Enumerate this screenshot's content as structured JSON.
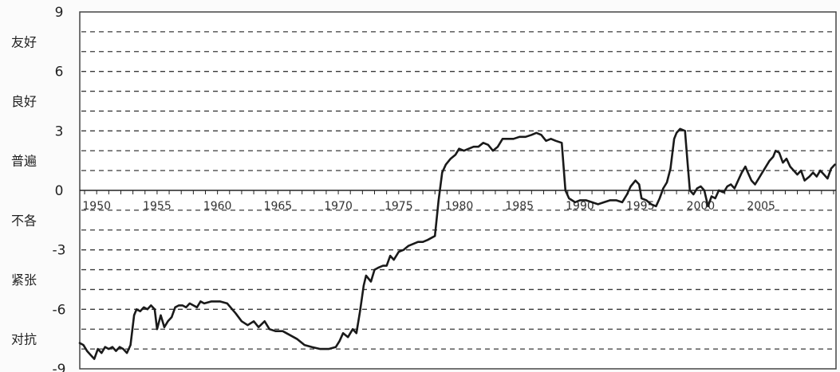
{
  "chart_data": {
    "type": "line",
    "title": "",
    "xlabel": "",
    "ylabel": "",
    "xlim": [
      1948.6,
      2011.2
    ],
    "ylim": [
      -9,
      9
    ],
    "y_ticks": [
      "9",
      "6",
      "3",
      "0",
      "-3",
      "-6",
      "-9"
    ],
    "x_tick_labels": [
      "1950",
      "1955",
      "1960",
      "1965",
      "1970",
      "1975",
      "1980",
      "1985",
      "1990",
      "1995",
      "2000",
      "2005"
    ],
    "category_labels": [
      {
        "text": "友好",
        "y": 7.5
      },
      {
        "text": "良好",
        "y": 4.5
      },
      {
        "text": "普遍",
        "y": 1.5
      },
      {
        "text": "不各",
        "y": -1.5
      },
      {
        "text": "紧张",
        "y": -4.5
      },
      {
        "text": "对抗",
        "y": -7.5
      }
    ],
    "grid": "dashed horizontal lines every 1 unit",
    "series": [
      {
        "color": "#1a1a1a",
        "points": [
          [
            1948.6,
            -7.7
          ],
          [
            1948.9,
            -7.8
          ],
          [
            1949.2,
            -8.1
          ],
          [
            1949.5,
            -8.3
          ],
          [
            1949.8,
            -8.5
          ],
          [
            1950.1,
            -8.0
          ],
          [
            1950.4,
            -8.2
          ],
          [
            1950.7,
            -7.9
          ],
          [
            1951.0,
            -8.0
          ],
          [
            1951.3,
            -7.9
          ],
          [
            1951.6,
            -8.1
          ],
          [
            1951.9,
            -7.9
          ],
          [
            1952.2,
            -8.0
          ],
          [
            1952.5,
            -8.2
          ],
          [
            1952.8,
            -7.8
          ],
          [
            1953.1,
            -6.3
          ],
          [
            1953.3,
            -6.0
          ],
          [
            1953.6,
            -6.1
          ],
          [
            1953.9,
            -5.9
          ],
          [
            1954.2,
            -6.0
          ],
          [
            1954.5,
            -5.8
          ],
          [
            1954.8,
            -6.0
          ],
          [
            1955.0,
            -7.0
          ],
          [
            1955.3,
            -6.3
          ],
          [
            1955.6,
            -6.9
          ],
          [
            1955.9,
            -6.6
          ],
          [
            1956.2,
            -6.4
          ],
          [
            1956.5,
            -5.9
          ],
          [
            1956.8,
            -5.8
          ],
          [
            1957.1,
            -5.8
          ],
          [
            1957.4,
            -5.9
          ],
          [
            1957.7,
            -5.7
          ],
          [
            1958.0,
            -5.8
          ],
          [
            1958.3,
            -5.9
          ],
          [
            1958.6,
            -5.6
          ],
          [
            1958.9,
            -5.7
          ],
          [
            1959.5,
            -5.6
          ],
          [
            1960.2,
            -5.6
          ],
          [
            1960.8,
            -5.7
          ],
          [
            1961.5,
            -6.2
          ],
          [
            1962.0,
            -6.6
          ],
          [
            1962.5,
            -6.8
          ],
          [
            1963.0,
            -6.6
          ],
          [
            1963.4,
            -6.9
          ],
          [
            1963.9,
            -6.6
          ],
          [
            1964.3,
            -7.0
          ],
          [
            1964.8,
            -7.1
          ],
          [
            1965.4,
            -7.1
          ],
          [
            1966.0,
            -7.3
          ],
          [
            1966.6,
            -7.5
          ],
          [
            1967.2,
            -7.8
          ],
          [
            1967.8,
            -7.9
          ],
          [
            1968.5,
            -8.0
          ],
          [
            1969.2,
            -8.0
          ],
          [
            1969.8,
            -7.9
          ],
          [
            1970.1,
            -7.6
          ],
          [
            1970.4,
            -7.2
          ],
          [
            1970.8,
            -7.4
          ],
          [
            1971.2,
            -7.0
          ],
          [
            1971.5,
            -7.2
          ],
          [
            1971.8,
            -6.1
          ],
          [
            1972.1,
            -4.8
          ],
          [
            1972.3,
            -4.3
          ],
          [
            1972.7,
            -4.6
          ],
          [
            1973.0,
            -4.0
          ],
          [
            1973.3,
            -3.9
          ],
          [
            1973.7,
            -3.8
          ],
          [
            1974.0,
            -3.8
          ],
          [
            1974.3,
            -3.3
          ],
          [
            1974.6,
            -3.5
          ],
          [
            1975.0,
            -3.1
          ],
          [
            1975.4,
            -3.0
          ],
          [
            1975.8,
            -2.8
          ],
          [
            1976.2,
            -2.7
          ],
          [
            1976.6,
            -2.6
          ],
          [
            1977.0,
            -2.6
          ],
          [
            1977.4,
            -2.5
          ],
          [
            1977.7,
            -2.4
          ],
          [
            1978.0,
            -2.3
          ],
          [
            1978.3,
            -0.5
          ],
          [
            1978.6,
            0.9
          ],
          [
            1978.9,
            1.3
          ],
          [
            1979.3,
            1.6
          ],
          [
            1979.7,
            1.8
          ],
          [
            1980.0,
            2.1
          ],
          [
            1980.4,
            2.0
          ],
          [
            1980.8,
            2.1
          ],
          [
            1981.2,
            2.2
          ],
          [
            1981.6,
            2.2
          ],
          [
            1982.0,
            2.4
          ],
          [
            1982.4,
            2.3
          ],
          [
            1982.8,
            2.0
          ],
          [
            1983.2,
            2.2
          ],
          [
            1983.6,
            2.6
          ],
          [
            1984.0,
            2.6
          ],
          [
            1984.5,
            2.6
          ],
          [
            1985.0,
            2.7
          ],
          [
            1985.5,
            2.7
          ],
          [
            1986.0,
            2.8
          ],
          [
            1986.4,
            2.9
          ],
          [
            1986.8,
            2.8
          ],
          [
            1987.2,
            2.5
          ],
          [
            1987.6,
            2.6
          ],
          [
            1988.0,
            2.5
          ],
          [
            1988.5,
            2.4
          ],
          [
            1988.8,
            0.0
          ],
          [
            1989.1,
            -0.4
          ],
          [
            1989.6,
            -0.6
          ],
          [
            1990.0,
            -0.5
          ],
          [
            1990.5,
            -0.5
          ],
          [
            1991.0,
            -0.6
          ],
          [
            1991.5,
            -0.7
          ],
          [
            1992.0,
            -0.6
          ],
          [
            1992.5,
            -0.5
          ],
          [
            1993.0,
            -0.5
          ],
          [
            1993.5,
            -0.6
          ],
          [
            1993.9,
            -0.2
          ],
          [
            1994.2,
            0.2
          ],
          [
            1994.6,
            0.5
          ],
          [
            1994.9,
            0.3
          ],
          [
            1995.1,
            -0.4
          ],
          [
            1995.5,
            -0.5
          ],
          [
            1995.9,
            -0.7
          ],
          [
            1996.3,
            -0.8
          ],
          [
            1996.6,
            -0.4
          ],
          [
            1996.9,
            0.1
          ],
          [
            1997.2,
            0.4
          ],
          [
            1997.5,
            1.1
          ],
          [
            1997.8,
            2.6
          ],
          [
            1998.0,
            2.9
          ],
          [
            1998.3,
            3.1
          ],
          [
            1998.7,
            3.0
          ],
          [
            1998.9,
            1.5
          ],
          [
            1999.1,
            0.0
          ],
          [
            1999.4,
            -0.2
          ],
          [
            1999.7,
            0.1
          ],
          [
            2000.0,
            0.2
          ],
          [
            2000.3,
            0.0
          ],
          [
            2000.6,
            -0.8
          ],
          [
            2000.9,
            -0.3
          ],
          [
            2001.2,
            -0.4
          ],
          [
            2001.5,
            0.0
          ],
          [
            2001.9,
            -0.1
          ],
          [
            2002.2,
            0.2
          ],
          [
            2002.5,
            0.3
          ],
          [
            2002.8,
            0.1
          ],
          [
            2003.1,
            0.5
          ],
          [
            2003.4,
            0.9
          ],
          [
            2003.7,
            1.2
          ],
          [
            2003.9,
            0.9
          ],
          [
            2004.2,
            0.5
          ],
          [
            2004.5,
            0.3
          ],
          [
            2004.8,
            0.6
          ],
          [
            2005.1,
            0.9
          ],
          [
            2005.4,
            1.2
          ],
          [
            2005.7,
            1.5
          ],
          [
            2006.0,
            1.7
          ],
          [
            2006.2,
            2.0
          ],
          [
            2006.5,
            1.9
          ],
          [
            2006.8,
            1.4
          ],
          [
            2007.1,
            1.6
          ],
          [
            2007.4,
            1.2
          ],
          [
            2007.7,
            1.0
          ],
          [
            2008.0,
            0.8
          ],
          [
            2008.3,
            1.0
          ],
          [
            2008.6,
            0.5
          ],
          [
            2009.0,
            0.7
          ],
          [
            2009.3,
            0.9
          ],
          [
            2009.6,
            0.7
          ],
          [
            2009.9,
            1.0
          ],
          [
            2010.2,
            0.8
          ],
          [
            2010.5,
            0.6
          ],
          [
            2010.8,
            1.1
          ],
          [
            2011.1,
            1.3
          ]
        ]
      }
    ]
  }
}
